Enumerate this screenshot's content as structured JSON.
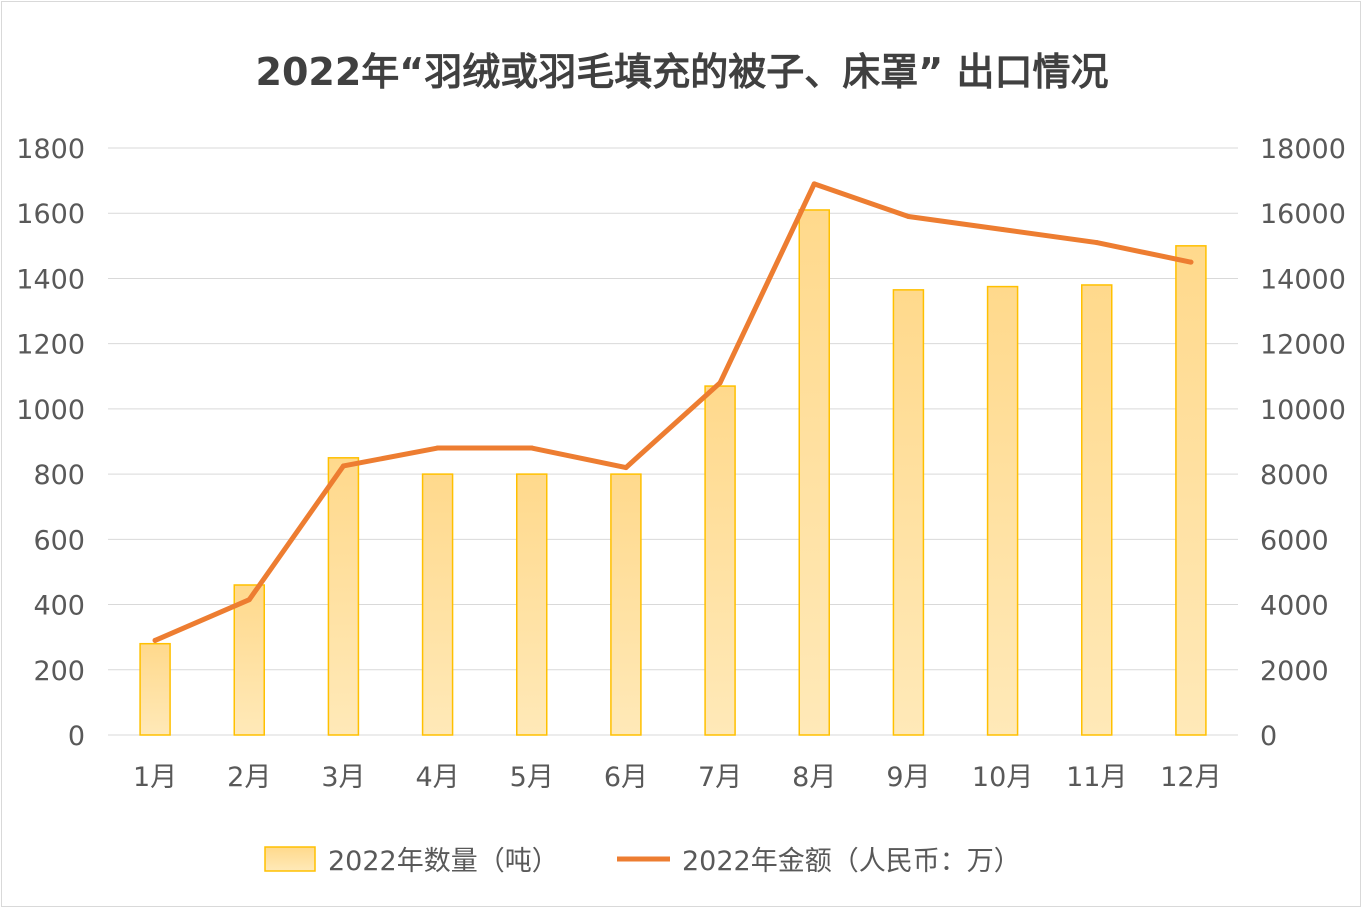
{
  "chart_data": {
    "type": "bar+line",
    "title": "2022年“羽绒或羽毛填充的被子、床罩” 出口情况",
    "categories": [
      "1月",
      "2月",
      "3月",
      "4月",
      "5月",
      "6月",
      "7月",
      "8月",
      "9月",
      "10月",
      "11月",
      "12月"
    ],
    "series": [
      {
        "name": "2022年数量（吨）",
        "type": "bar",
        "axis": "left",
        "color": "#FFD966",
        "values": [
          280,
          460,
          850,
          800,
          800,
          800,
          1070,
          1610,
          1365,
          1375,
          1380,
          1500
        ]
      },
      {
        "name": "2022年金额（人民币：万）",
        "type": "line",
        "axis": "right",
        "color": "#ED7D31",
        "values": [
          2900,
          4150,
          8250,
          8800,
          8800,
          8200,
          10800,
          16900,
          15900,
          15500,
          15100,
          14500
        ]
      }
    ],
    "y_left": {
      "range": [
        0,
        1800
      ],
      "ticks": [
        "0",
        "200",
        "400",
        "600",
        "800",
        "1000",
        "1200",
        "1400",
        "1600",
        "1800"
      ]
    },
    "y_right": {
      "range": [
        0,
        18000
      ],
      "ticks": [
        "0",
        "2000",
        "4000",
        "6000",
        "8000",
        "10000",
        "12000",
        "14000",
        "16000",
        "18000"
      ]
    },
    "grid": true,
    "legend": "bottom"
  }
}
